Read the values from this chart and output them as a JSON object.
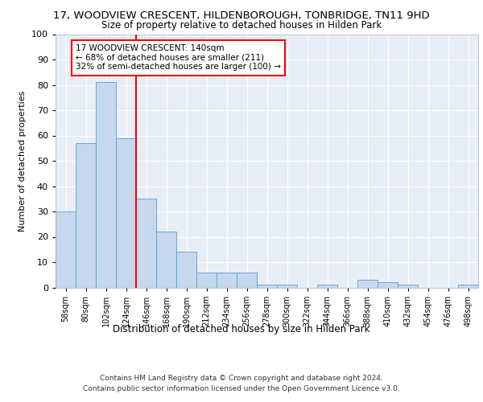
{
  "title1": "17, WOODVIEW CRESCENT, HILDENBOROUGH, TONBRIDGE, TN11 9HD",
  "title2": "Size of property relative to detached houses in Hilden Park",
  "xlabel": "Distribution of detached houses by size in Hilden Park",
  "ylabel": "Number of detached properties",
  "bin_labels": [
    "58sqm",
    "80sqm",
    "102sqm",
    "124sqm",
    "146sqm",
    "168sqm",
    "190sqm",
    "212sqm",
    "234sqm",
    "256sqm",
    "278sqm",
    "300sqm",
    "322sqm",
    "344sqm",
    "366sqm",
    "388sqm",
    "410sqm",
    "432sqm",
    "454sqm",
    "476sqm",
    "498sqm"
  ],
  "bar_heights": [
    30,
    57,
    81,
    59,
    35,
    22,
    14,
    6,
    6,
    6,
    1,
    1,
    0,
    1,
    0,
    3,
    2,
    1,
    0,
    0,
    1
  ],
  "bar_color": "#c5d8ed",
  "bar_edge_color": "#5a9fd4",
  "vline_index": 4,
  "annotation_text": "17 WOODVIEW CRESCENT: 140sqm\n← 68% of detached houses are smaller (211)\n32% of semi-detached houses are larger (100) →",
  "annotation_box_color": "white",
  "annotation_border_color": "red",
  "vline_color": "red",
  "ylim": [
    0,
    100
  ],
  "yticks": [
    0,
    10,
    20,
    30,
    40,
    50,
    60,
    70,
    80,
    90,
    100
  ],
  "background_color": "#e8eef8",
  "footer1": "Contains HM Land Registry data © Crown copyright and database right 2024.",
  "footer2": "Contains public sector information licensed under the Open Government Licence v3.0."
}
